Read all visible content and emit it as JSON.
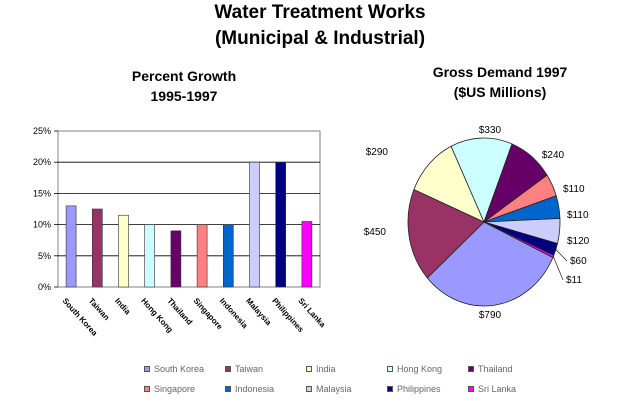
{
  "header": {
    "title_line1": "Water Treatment Works",
    "title_line2": "(Municipal & Industrial)"
  },
  "chart_data": [
    {
      "type": "bar",
      "title_line1": "Percent Growth",
      "title_line2": "1995-1997",
      "ylim": [
        0,
        25
      ],
      "yticks": [
        "0%",
        "5%",
        "10%",
        "15%",
        "20%",
        "25%"
      ],
      "grid": "horizontal",
      "categories": [
        "South Korea",
        "Taiwan",
        "India",
        "Hong Kong",
        "Thailand",
        "Singapore",
        "Indonesia",
        "Malaysia",
        "Philippines",
        "Sri Lanka"
      ],
      "values": [
        13,
        12.5,
        11.5,
        10,
        9,
        10,
        10,
        20,
        20,
        10.5
      ],
      "colors": [
        "#9999ff",
        "#993366",
        "#ffffcc",
        "#ccffff",
        "#660066",
        "#ff8080",
        "#0066cc",
        "#ccccff",
        "#000080",
        "#ff00ff"
      ],
      "legend_position": "bottom"
    },
    {
      "type": "pie",
      "title_line1": "Gross Demand 1997",
      "title_line2": "($US Millions)",
      "slices": [
        {
          "label": "$790",
          "value": 790,
          "color": "#9999ff"
        },
        {
          "label": "$450",
          "value": 450,
          "color": "#993366"
        },
        {
          "label": "$290",
          "value": 290,
          "color": "#ffffcc"
        },
        {
          "label": "$330",
          "value": 330,
          "color": "#ccffff"
        },
        {
          "label": "$240",
          "value": 240,
          "color": "#660066"
        },
        {
          "label": "$110",
          "value": 110,
          "color": "#ff8080"
        },
        {
          "label": "$110",
          "value": 110,
          "color": "#0066cc"
        },
        {
          "label": "$120",
          "value": 120,
          "color": "#ccccff"
        },
        {
          "label": "$60",
          "value": 60,
          "color": "#000080"
        },
        {
          "label": "$11",
          "value": 11,
          "color": "#ff00ff"
        }
      ]
    }
  ],
  "legend": [
    {
      "label": "South Korea",
      "color": "#9999ff"
    },
    {
      "label": "Taiwan",
      "color": "#993366"
    },
    {
      "label": "India",
      "color": "#ffffcc"
    },
    {
      "label": "Hong Kong",
      "color": "#ccffff"
    },
    {
      "label": "Thailand",
      "color": "#660066"
    },
    {
      "label": "Singapore",
      "color": "#ff8080"
    },
    {
      "label": "Indonesia",
      "color": "#0066cc"
    },
    {
      "label": "Malaysia",
      "color": "#ccccff"
    },
    {
      "label": "Philippines",
      "color": "#000080"
    },
    {
      "label": "Sri Lanka",
      "color": "#ff00ff"
    }
  ]
}
